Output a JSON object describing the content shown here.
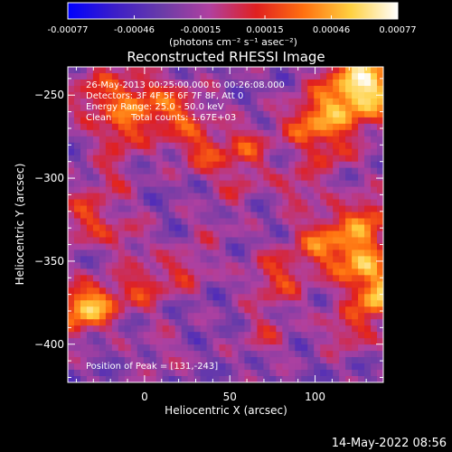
{
  "colorbar": {
    "ticks": [
      "-0.00077",
      "-0.00046",
      "-0.00015",
      "0.00015",
      "0.00046",
      "0.00077"
    ],
    "tick_values": [
      -0.00077,
      -0.00046,
      -0.00015,
      0.00015,
      0.00046,
      0.00077
    ],
    "units": "(photons cm⁻² s⁻¹ asec⁻²)"
  },
  "chart_data": {
    "type": "heatmap",
    "title": "Reconstructed RHESSI Image",
    "xlabel": "Heliocentric X (arcsec)",
    "ylabel": "Heliocentric Y (arcsec)",
    "xlim": [
      -45,
      140
    ],
    "ylim": [
      -423,
      -233
    ],
    "x_ticks": [
      0,
      50,
      100
    ],
    "y_ticks": [
      -250,
      -300,
      -350,
      -400
    ],
    "value_range": [
      -0.00077,
      0.00077
    ],
    "peak_position": [
      131,
      -243
    ]
  },
  "annotations": {
    "line1": "26-May-2013 00:25:00.000 to 00:26:08.000",
    "line2": "Detectors: 3F 4F 5F 6F 7F 8F, Att 0",
    "line3": "Energy Range: 25.0 - 50.0 keV",
    "line4a": "Clean",
    "line4b": "Total counts: 1.67E+03",
    "peak": "Position of Peak = [131,-243]"
  },
  "footer": {
    "timestamp": "14-May-2022 08:56"
  },
  "palette": {
    "colorbar_stops": [
      "#0000ff",
      "#3c1ec8",
      "#6a3ca8",
      "#b040a0",
      "#e02020",
      "#ff7010",
      "#ffd040",
      "#ffffff"
    ]
  }
}
